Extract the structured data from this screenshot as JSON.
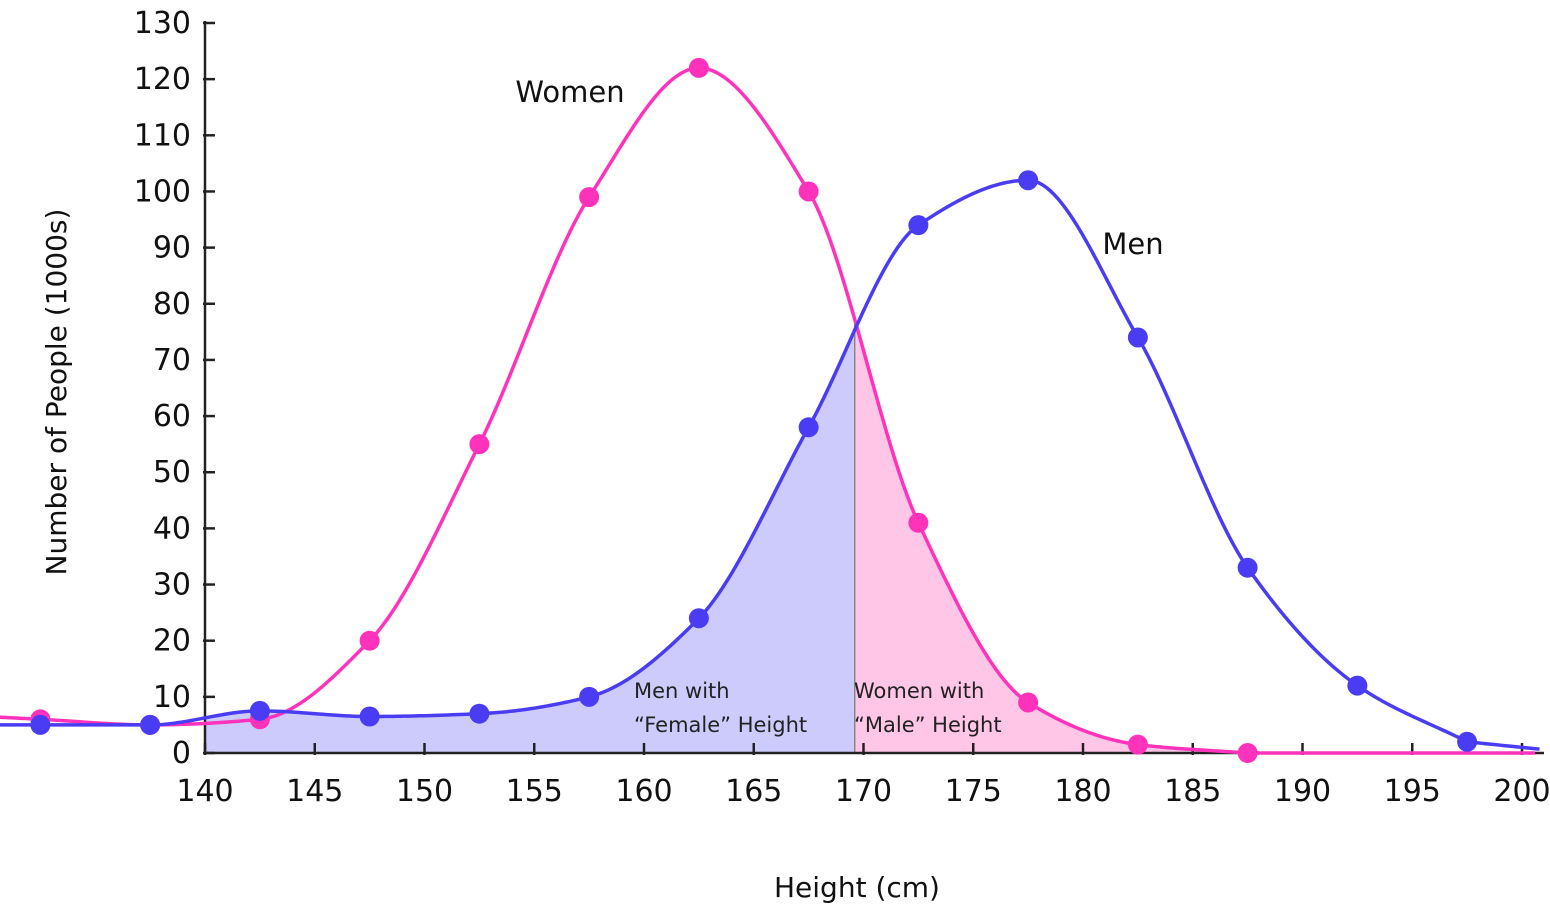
{
  "chart_data": {
    "type": "line",
    "title": "",
    "xlabel": "Height (cm)",
    "ylabel": "Number of People (1000s)",
    "xlim": [
      140,
      200
    ],
    "ylim": [
      0,
      130
    ],
    "x_ticks": [
      140,
      145,
      150,
      155,
      160,
      165,
      170,
      175,
      180,
      185,
      190,
      195,
      200
    ],
    "y_ticks": [
      0,
      10,
      20,
      30,
      40,
      50,
      60,
      70,
      80,
      90,
      100,
      110,
      120,
      130
    ],
    "grid": false,
    "series": [
      {
        "name": "Women",
        "color": "#ff33bb",
        "fill_color": "#ffc6e8",
        "x": [
          132.5,
          137.5,
          142.5,
          147.5,
          152.5,
          157.5,
          162.5,
          167.5,
          172.5,
          177.5,
          182.5,
          187.5
        ],
        "values": [
          6,
          5,
          6,
          20,
          55,
          99,
          122,
          100,
          41,
          9,
          1.5,
          0
        ]
      },
      {
        "name": "Men",
        "color": "#4a3cf2",
        "fill_color": "#cccbfc",
        "x": [
          132.5,
          137.5,
          142.5,
          147.5,
          152.5,
          157.5,
          162.5,
          167.5,
          172.5,
          177.5,
          182.5,
          187.5,
          192.5,
          197.5
        ],
        "values": [
          5,
          5,
          7.5,
          6.5,
          7,
          10,
          24,
          58,
          94,
          102,
          74,
          33,
          12,
          2
        ]
      }
    ],
    "split_x": 169.6,
    "annotations": [
      {
        "lines": [
          "Men with",
          "“Female” Height"
        ]
      },
      {
        "lines": [
          "Women with",
          "“Male” Height"
        ]
      }
    ]
  }
}
